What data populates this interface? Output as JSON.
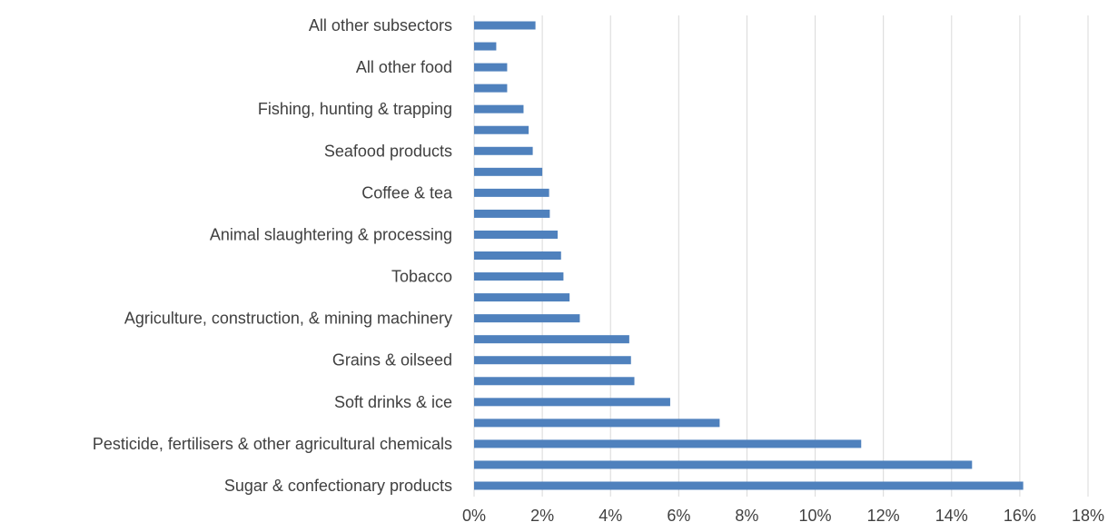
{
  "chart_data": {
    "type": "bar",
    "orientation": "horizontal",
    "categories": [
      "All other subsectors",
      "",
      "All other food",
      "",
      "Fishing, hunting & trapping",
      "",
      "Seafood products",
      "",
      "Coffee & tea",
      "",
      "Animal slaughtering & processing",
      "",
      "Tobacco",
      "",
      "Agriculture, construction, & mining machinery",
      "",
      "Grains & oilseed",
      "",
      "Soft drinks & ice",
      "",
      "Pesticide, fertilisers & other agricultural chemicals",
      "",
      "Sugar & confectionary products"
    ],
    "values": [
      1.8,
      0.65,
      0.97,
      0.97,
      1.45,
      1.6,
      1.72,
      2.0,
      2.2,
      2.22,
      2.45,
      2.55,
      2.62,
      2.8,
      3.1,
      4.55,
      4.6,
      4.7,
      5.75,
      7.2,
      11.35,
      14.6,
      16.1
    ],
    "xlim": [
      0,
      18
    ],
    "x_ticks": [
      "0%",
      "2%",
      "4%",
      "6%",
      "8%",
      "10%",
      "12%",
      "14%",
      "16%",
      "18%"
    ],
    "grid": true,
    "bar_color": "#4f81bd",
    "title": "",
    "xlabel": "",
    "ylabel": ""
  }
}
